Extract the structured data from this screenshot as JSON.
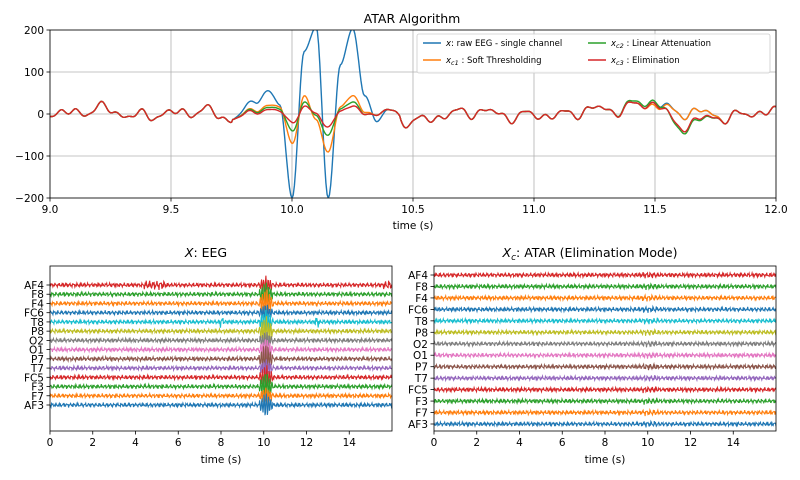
{
  "chart_data": [
    {
      "type": "line",
      "title": "ATAR Algorithm",
      "xlabel": "time (s)",
      "ylabel": "",
      "xlim": [
        9.0,
        12.0
      ],
      "ylim": [
        -200,
        200
      ],
      "x_ticks": [
        "9.0",
        "9.5",
        "10.0",
        "10.5",
        "11.0",
        "11.5",
        "12.0"
      ],
      "y_ticks": [
        "200",
        "100",
        "0",
        "−100",
        "−200"
      ],
      "grid": true,
      "legend_placement": "top-right",
      "series": [
        {
          "name": "x: raw EEG - single channel",
          "label_main": "x",
          "label_sub": "",
          "label_rest": ": raw EEG - single channel",
          "color": "#1f77b4",
          "x": [
            9.0,
            9.2,
            9.4,
            9.6,
            9.75,
            9.85,
            9.9,
            9.95,
            10.0,
            10.05,
            10.1,
            10.15,
            10.2,
            10.25,
            10.3,
            10.35,
            10.4,
            10.5,
            10.7,
            11.0,
            11.3,
            11.45,
            11.5,
            11.6,
            11.8,
            12.0
          ],
          "y": [
            0,
            10,
            -5,
            8,
            -10,
            30,
            55,
            20,
            -200,
            150,
            200,
            -200,
            120,
            200,
            50,
            -20,
            10,
            -20,
            5,
            -5,
            10,
            20,
            25,
            5,
            -5,
            5
          ]
        },
        {
          "name": "xc1 : Soft Thresholding",
          "label_main": "x",
          "label_sub": "c1",
          "label_rest": " : Soft Thresholding",
          "color": "#ff7f0e",
          "x": [
            9.0,
            9.2,
            9.4,
            9.6,
            9.75,
            9.85,
            9.9,
            9.95,
            10.0,
            10.05,
            10.1,
            10.15,
            10.2,
            10.25,
            10.3,
            10.35,
            10.4,
            10.5,
            10.7,
            11.0,
            11.3,
            11.45,
            11.5,
            11.6,
            11.8,
            12.0
          ],
          "y": [
            0,
            10,
            -5,
            8,
            -10,
            10,
            20,
            15,
            -70,
            45,
            -20,
            -90,
            20,
            40,
            10,
            -5,
            10,
            -20,
            5,
            -5,
            10,
            20,
            20,
            5,
            -5,
            5
          ]
        },
        {
          "name": "xc2 : Linear Attenuation",
          "label_main": "x",
          "label_sub": "c2",
          "label_rest": " : Linear Attenuation",
          "color": "#2ca02c",
          "x": [
            9.0,
            9.2,
            9.4,
            9.6,
            9.75,
            9.85,
            9.9,
            9.95,
            10.0,
            10.05,
            10.1,
            10.15,
            10.2,
            10.25,
            10.3,
            10.35,
            10.4,
            10.5,
            10.7,
            11.0,
            11.3,
            11.45,
            11.5,
            11.6,
            11.8,
            12.0
          ],
          "y": [
            0,
            10,
            -5,
            8,
            -10,
            8,
            15,
            10,
            -40,
            30,
            -10,
            -50,
            15,
            25,
            5,
            -5,
            10,
            -20,
            5,
            -5,
            10,
            25,
            30,
            -30,
            -5,
            5
          ]
        },
        {
          "name": "xc3 : Elimination",
          "label_main": "x",
          "label_sub": "c3",
          "label_rest": " : Elimination",
          "color": "#d62728",
          "x": [
            9.0,
            9.2,
            9.4,
            9.6,
            9.75,
            9.85,
            9.9,
            9.95,
            10.0,
            10.05,
            10.1,
            10.15,
            10.2,
            10.25,
            10.3,
            10.35,
            10.4,
            10.5,
            10.7,
            11.0,
            11.3,
            11.45,
            11.5,
            11.6,
            11.8,
            12.0
          ],
          "y": [
            0,
            10,
            -5,
            8,
            -10,
            5,
            10,
            5,
            -20,
            20,
            -5,
            -30,
            10,
            15,
            5,
            -5,
            10,
            -20,
            5,
            -5,
            10,
            20,
            25,
            -25,
            -5,
            5
          ]
        }
      ]
    },
    {
      "type": "line",
      "title_main": "X",
      "title_sub": "",
      "title_rest": ": EEG",
      "xlabel": "time (s)",
      "xlim": [
        0,
        16
      ],
      "x_ticks": [
        "0",
        "2",
        "4",
        "6",
        "8",
        "10",
        "12",
        "14"
      ],
      "channels": [
        "AF4",
        "F8",
        "F4",
        "FC6",
        "T8",
        "P8",
        "O2",
        "O1",
        "P7",
        "T7",
        "FC5",
        "F3",
        "F7",
        "AF3"
      ],
      "channel_colors": [
        "#d62728",
        "#2ca02c",
        "#ff7f0e",
        "#1f77b4",
        "#17becf",
        "#bcbd22",
        "#7f7f7f",
        "#e377c2",
        "#8c564b",
        "#9467bd",
        "#d62728",
        "#2ca02c",
        "#ff7f0e",
        "#1f77b4"
      ],
      "artifact_time": 10.1
    },
    {
      "type": "line",
      "title_main": "X",
      "title_sub": "c",
      "title_rest": ": ATAR (Elimination Mode)",
      "xlabel": "time (s)",
      "xlim": [
        0,
        16
      ],
      "x_ticks": [
        "0",
        "2",
        "4",
        "6",
        "8",
        "10",
        "12",
        "14"
      ],
      "channels": [
        "AF4",
        "F8",
        "F4",
        "FC6",
        "T8",
        "P8",
        "O2",
        "O1",
        "P7",
        "T7",
        "FC5",
        "F3",
        "F7",
        "AF3"
      ],
      "channel_colors": [
        "#d62728",
        "#2ca02c",
        "#ff7f0e",
        "#1f77b4",
        "#17becf",
        "#bcbd22",
        "#7f7f7f",
        "#e377c2",
        "#8c564b",
        "#9467bd",
        "#d62728",
        "#2ca02c",
        "#ff7f0e",
        "#1f77b4"
      ]
    }
  ]
}
